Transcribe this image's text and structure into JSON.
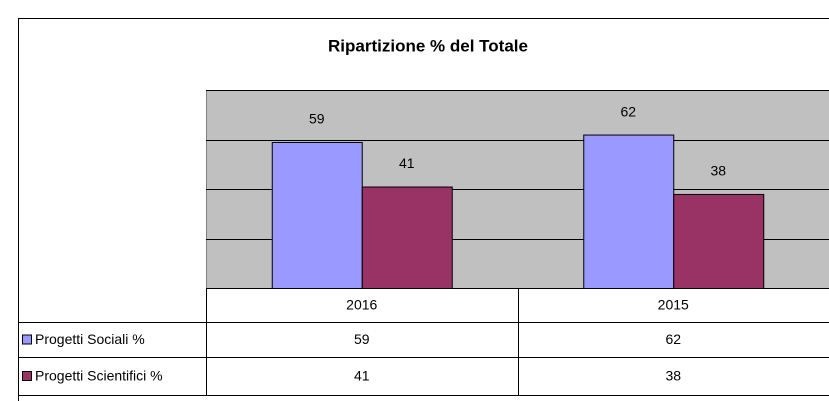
{
  "chart_data": {
    "type": "bar",
    "title": "Ripartizione % del Totale",
    "categories": [
      "2016",
      "2015"
    ],
    "series": [
      {
        "name": "Progetti Sociali %",
        "color": "#9999ff",
        "values": [
          59,
          62
        ]
      },
      {
        "name": "Progetti Scientifici %",
        "color": "#993366",
        "values": [
          41,
          38
        ]
      }
    ],
    "ylim": [
      0,
      80
    ],
    "yticks": [
      0,
      20,
      40,
      60,
      80
    ],
    "grid": true
  }
}
